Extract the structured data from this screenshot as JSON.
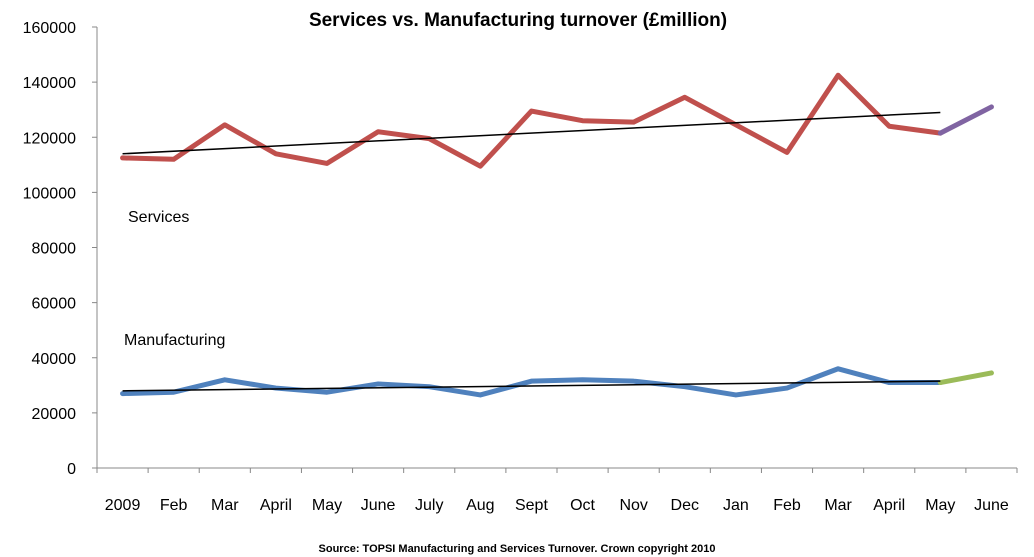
{
  "chart_data": {
    "type": "line",
    "title": "Services vs. Manufacturing turnover (£million)",
    "source": "Source: TOPSI Manufacturing and Services Turnover. Crown copyright 2010",
    "categories": [
      "2009",
      "Feb",
      "Mar",
      "April",
      "May",
      "June",
      "July",
      "Aug",
      "Sept",
      "Oct",
      "Nov",
      "Dec",
      "Jan",
      "Feb",
      "Mar",
      "April",
      "May",
      "June"
    ],
    "ylim": [
      0,
      160000
    ],
    "yticks": [
      0,
      20000,
      40000,
      60000,
      80000,
      100000,
      120000,
      140000,
      160000
    ],
    "grid": false,
    "series": [
      {
        "name": "Services",
        "color": "#C0504D",
        "forecast_color": "#8064A2",
        "values": [
          112500,
          112000,
          124500,
          114000,
          110500,
          122000,
          119500,
          109500,
          129500,
          126000,
          125500,
          134500,
          124500,
          114500,
          142500,
          124000,
          121500,
          131000
        ],
        "trend": [
          114000,
          129000
        ]
      },
      {
        "name": "Manufacturing",
        "color": "#4F81BD",
        "forecast_color": "#9BBB59",
        "values": [
          27000,
          27500,
          32000,
          29000,
          27500,
          30500,
          29500,
          26500,
          31500,
          32000,
          31500,
          29500,
          26500,
          29000,
          36000,
          31000,
          31000,
          34500
        ],
        "trend": [
          28000,
          31500
        ]
      }
    ],
    "trend_color": "#000000"
  }
}
